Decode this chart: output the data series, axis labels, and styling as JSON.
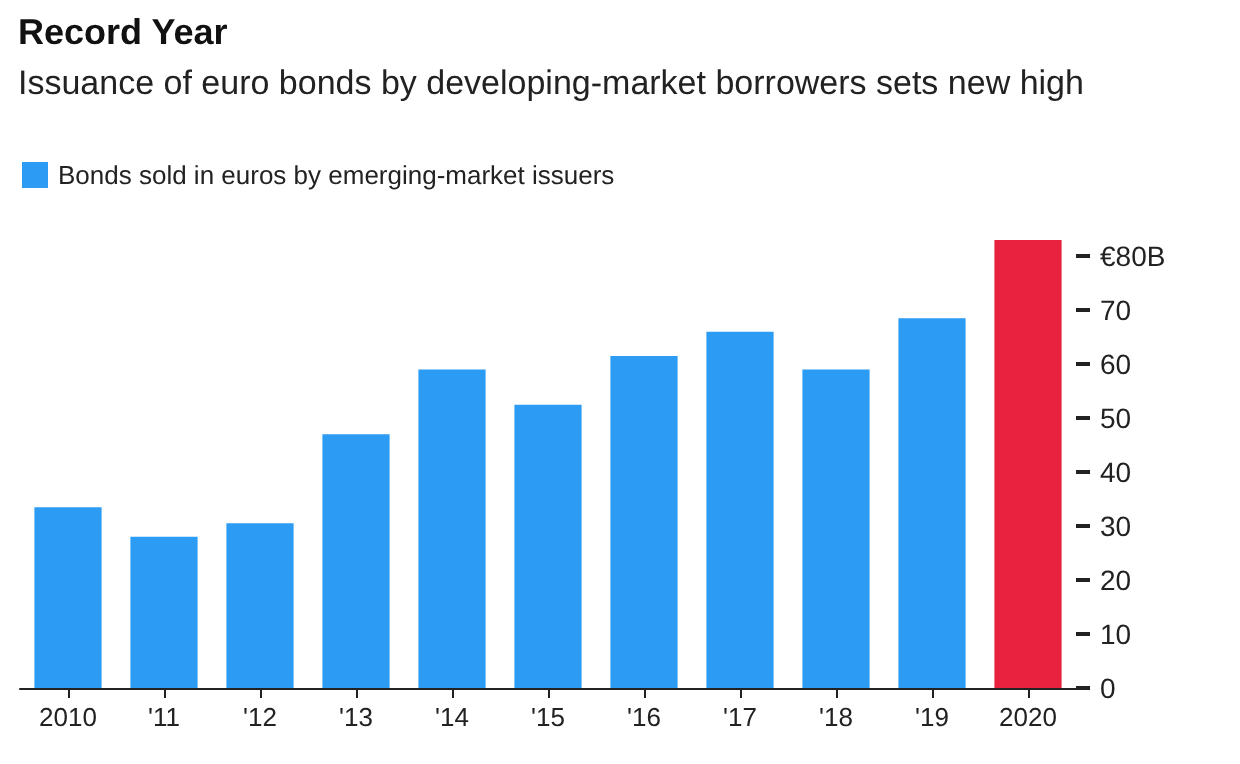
{
  "chart_data": {
    "type": "bar",
    "title": "Record Year",
    "subtitle": "Issuance of euro bonds by developing-market borrowers sets new high",
    "categories": [
      "2010",
      "'11",
      "'12",
      "'13",
      "'14",
      "'15",
      "'16",
      "'17",
      "'18",
      "'19",
      "2020"
    ],
    "series": [
      {
        "name": "Bonds sold in euros by emerging-market issuers",
        "color": "#2b9bf4",
        "colors": [
          "#2b9bf4",
          "#2b9bf4",
          "#2b9bf4",
          "#2b9bf4",
          "#2b9bf4",
          "#2b9bf4",
          "#2b9bf4",
          "#2b9bf4",
          "#2b9bf4",
          "#2b9bf4",
          "#e8223f"
        ],
        "values": [
          33.5,
          28,
          30.5,
          47,
          59,
          52.5,
          61.5,
          66,
          59,
          68.5,
          83
        ]
      }
    ],
    "ylim": [
      0,
      83
    ],
    "yticks": [
      0,
      10,
      20,
      30,
      40,
      50,
      60,
      70,
      {
        "value": 80,
        "label": "€80B"
      }
    ],
    "grid": false,
    "legend": "top left"
  }
}
